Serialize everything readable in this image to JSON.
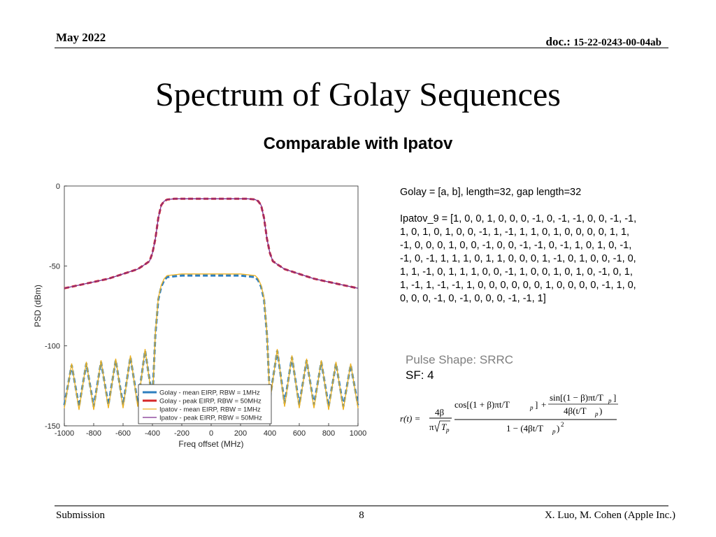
{
  "header": {
    "date": "May 2022",
    "doc_prefix": "doc.:",
    "doc_number": "15-22-0243-00-04ab"
  },
  "title": "Spectrum of Golay Sequences",
  "subtitle": "Comparable with Ipatov",
  "text": {
    "golay_line": "Golay = [a, b], length=32, gap length=32",
    "ipatov_line": "Ipatov_9 = [1, 0, 0, 1, 0, 0, 0, -1, 0, -1, -1, 0, 0, -1, -1, 1, 0, 1, 0, 1, 0, 0, -1, 1, -1, 1, 1, 0, 1, 0, 0, 0, 0, 1, 1, -1, 0, 0, 0, 1, 0, 0, -1, 0, 0, -1, -1, 0, -1, 1, 0, 1, 0, -1, -1, 0, -1, 1, 1, 1, 0, 1, 1, 0, 0, 0, 1, -1, 0, 1, 0, 0, -1, 0, 1, 1, -1, 0, 1, 1, 1, 0, 0, -1, 1, 0, 0, 1, 0, 1, 0, -1, 0, 1, 1, -1, 1, -1, -1, 1, 0, 0, 0, 0, 0, 0, 1, 0, 0, 0, 0, -1, 1, 0, 0, 0, 0, -1, 0, -1, 0, 0, 0, -1, -1, 1]",
    "pulse_shape": "Pulse Shape: SRRC",
    "sf": "SF: 4"
  },
  "formula": {
    "lhs": "r(t) =",
    "coef_num": "4β",
    "coef_den_pi": "π",
    "coef_den_T": "T",
    "sub_p": "p",
    "cos_part": "cos[(1 + β)πt/T",
    "plus": "+",
    "sin_part": "sin[(1 − β)πt/T",
    "sin_den": "4β(t/T",
    "den_main": "1 − (4βt/T",
    "close_paren": ")",
    "close_bracket": "]",
    "square": "2"
  },
  "chart_data": {
    "type": "line",
    "xlabel": "Freq offset (MHz)",
    "ylabel": "PSD (dBm)",
    "xlim": [
      -1000,
      1000
    ],
    "ylim": [
      -150,
      0
    ],
    "xticks": [
      -1000,
      -800,
      -600,
      -400,
      -200,
      0,
      200,
      400,
      600,
      800,
      1000
    ],
    "yticks": [
      0,
      -50,
      -100,
      -150
    ],
    "legend_position": "bottom-center",
    "series": [
      {
        "name": "Golay - mean EIRP, RBW = 1MHz",
        "color": "#2e7fbf",
        "style": "dashed",
        "x": [
          -1000,
          -950,
          -900,
          -850,
          -800,
          -750,
          -700,
          -650,
          -600,
          -550,
          -500,
          -450,
          -400,
          -380,
          -360,
          -340,
          -320,
          -300,
          -200,
          -100,
          0,
          100,
          200,
          300,
          320,
          340,
          360,
          380,
          400,
          450,
          500,
          550,
          600,
          650,
          700,
          750,
          800,
          850,
          900,
          950,
          1000
        ],
        "y": [
          -137,
          -112,
          -138,
          -111,
          -138,
          -110,
          -137,
          -109,
          -137,
          -107,
          -136,
          -103,
          -133,
          -93,
          -71,
          -63,
          -59,
          -57,
          -56,
          -56,
          -56,
          -56,
          -56,
          -57,
          -59,
          -63,
          -71,
          -93,
          -133,
          -103,
          -136,
          -107,
          -137,
          -109,
          -137,
          -110,
          -138,
          -111,
          -138,
          -112,
          -137
        ]
      },
      {
        "name": "Golay - peak EIRP, RBW = 50MHz",
        "color": "#d62728",
        "style": "dashed",
        "x": [
          -1000,
          -900,
          -800,
          -700,
          -600,
          -500,
          -450,
          -420,
          -400,
          -380,
          -360,
          -340,
          -320,
          -300,
          -250,
          -200,
          -100,
          0,
          100,
          200,
          250,
          300,
          320,
          340,
          360,
          380,
          400,
          420,
          450,
          500,
          600,
          700,
          800,
          900,
          1000
        ],
        "y": [
          -64,
          -62,
          -60,
          -58,
          -55,
          -52,
          -49,
          -47,
          -42,
          -33,
          -20,
          -12,
          -9.5,
          -8.5,
          -8,
          -8,
          -8,
          -8,
          -8,
          -8,
          -8,
          -8.5,
          -9.5,
          -12,
          -20,
          -33,
          -42,
          -47,
          -49,
          -52,
          -55,
          -58,
          -60,
          -62,
          -64
        ]
      },
      {
        "name": "Ipatov - mean EIRP, RBW = 1MHz",
        "color": "#edb120",
        "style": "solid",
        "x": [
          -1000,
          -950,
          -900,
          -850,
          -800,
          -750,
          -700,
          -650,
          -600,
          -550,
          -500,
          -450,
          -400,
          -380,
          -360,
          -340,
          -320,
          -300,
          -200,
          -100,
          0,
          100,
          200,
          300,
          320,
          340,
          360,
          380,
          400,
          450,
          500,
          550,
          600,
          650,
          700,
          750,
          800,
          850,
          900,
          950,
          1000
        ],
        "y": [
          -139,
          -111,
          -140,
          -110,
          -140,
          -109,
          -139,
          -108,
          -139,
          -106,
          -138,
          -102,
          -135,
          -92,
          -70,
          -62,
          -58,
          -56,
          -55,
          -55,
          -55,
          -55,
          -55,
          -56,
          -58,
          -62,
          -70,
          -92,
          -135,
          -102,
          -138,
          -106,
          -139,
          -108,
          -139,
          -109,
          -140,
          -110,
          -140,
          -111,
          -139
        ]
      },
      {
        "name": "Ipatov - peak EIRP, RBW = 50MHz",
        "color": "#7e2f8e",
        "style": "solid",
        "x": [
          -1000,
          -900,
          -800,
          -700,
          -600,
          -500,
          -450,
          -420,
          -400,
          -380,
          -360,
          -340,
          -320,
          -300,
          -250,
          -200,
          -100,
          0,
          100,
          200,
          250,
          300,
          320,
          340,
          360,
          380,
          400,
          420,
          450,
          500,
          600,
          700,
          800,
          900,
          1000
        ],
        "y": [
          -64,
          -62,
          -60,
          -58,
          -55,
          -52,
          -49,
          -47,
          -42,
          -33,
          -20,
          -12,
          -9.5,
          -8.5,
          -8,
          -8,
          -8,
          -8,
          -8,
          -8,
          -8,
          -8.5,
          -9.5,
          -12,
          -20,
          -33,
          -42,
          -47,
          -49,
          -52,
          -55,
          -58,
          -60,
          -62,
          -64
        ]
      }
    ]
  },
  "footer": {
    "left": "Submission",
    "page": "8",
    "right": "X. Luo, M. Cohen (Apple Inc.)"
  }
}
